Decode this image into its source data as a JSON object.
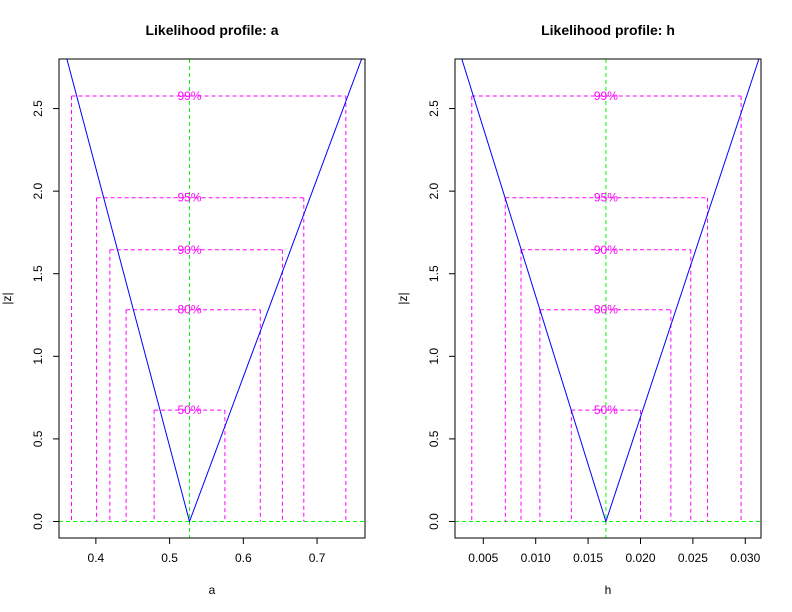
{
  "chart_data": [
    {
      "type": "line",
      "title": "Likelihood profile: a",
      "xlabel": "a",
      "ylabel": "|z|",
      "xlim": [
        0.35,
        0.765
      ],
      "ylim": [
        -0.1,
        2.8
      ],
      "x_ticks": [
        0.4,
        0.5,
        0.6,
        0.7
      ],
      "x_tick_labels": [
        "0.4",
        "0.5",
        "0.6",
        "0.7"
      ],
      "y_ticks": [
        0.0,
        0.5,
        1.0,
        1.5,
        2.0,
        2.5
      ],
      "y_tick_labels": [
        "0.0",
        "0.5",
        "1.0",
        "1.5",
        "2.0",
        "2.5"
      ],
      "mle": 0.527,
      "series": [
        {
          "x": [
            0.3607,
            0.527,
            0.7604
          ],
          "y": [
            2.8,
            0.0,
            2.8
          ]
        }
      ],
      "intervals": [
        {
          "label": "50%",
          "z": 0.674,
          "lower": 0.479,
          "upper": 0.575
        },
        {
          "label": "80%",
          "z": 1.282,
          "lower": 0.441,
          "upper": 0.623
        },
        {
          "label": "90%",
          "z": 1.645,
          "lower": 0.419,
          "upper": 0.653
        },
        {
          "label": "95%",
          "z": 1.96,
          "lower": 0.401,
          "upper": 0.682
        },
        {
          "label": "99%",
          "z": 2.576,
          "lower": 0.367,
          "upper": 0.739
        }
      ],
      "colors": {
        "curve": "#0000ff",
        "intervals": "#ff00ff",
        "reference": "#00ff00"
      }
    },
    {
      "type": "line",
      "title": "Likelihood profile: h",
      "xlabel": "h",
      "ylabel": "|z|",
      "xlim": [
        0.0023,
        0.0315
      ],
      "ylim": [
        -0.1,
        2.8
      ],
      "x_ticks": [
        0.005,
        0.01,
        0.015,
        0.02,
        0.025,
        0.03
      ],
      "x_tick_labels": [
        "0.005",
        "0.010",
        "0.015",
        "0.020",
        "0.025",
        "0.030"
      ],
      "y_ticks": [
        0.0,
        0.5,
        1.0,
        1.5,
        2.0,
        2.5
      ],
      "y_tick_labels": [
        "0.0",
        "0.5",
        "1.0",
        "1.5",
        "2.0",
        "2.5"
      ],
      "mle": 0.0167,
      "series": [
        {
          "x": [
            0.00295,
            0.0167,
            0.0313
          ],
          "y": [
            2.8,
            0.0,
            2.8
          ]
        }
      ],
      "intervals": [
        {
          "label": "50%",
          "z": 0.674,
          "lower": 0.0134,
          "upper": 0.02
        },
        {
          "label": "80%",
          "z": 1.282,
          "lower": 0.0104,
          "upper": 0.0229
        },
        {
          "label": "90%",
          "z": 1.645,
          "lower": 0.0086,
          "upper": 0.0248
        },
        {
          "label": "95%",
          "z": 1.96,
          "lower": 0.0071,
          "upper": 0.0264
        },
        {
          "label": "99%",
          "z": 2.576,
          "lower": 0.0039,
          "upper": 0.0296
        }
      ],
      "colors": {
        "curve": "#0000ff",
        "intervals": "#ff00ff",
        "reference": "#00ff00"
      }
    }
  ]
}
